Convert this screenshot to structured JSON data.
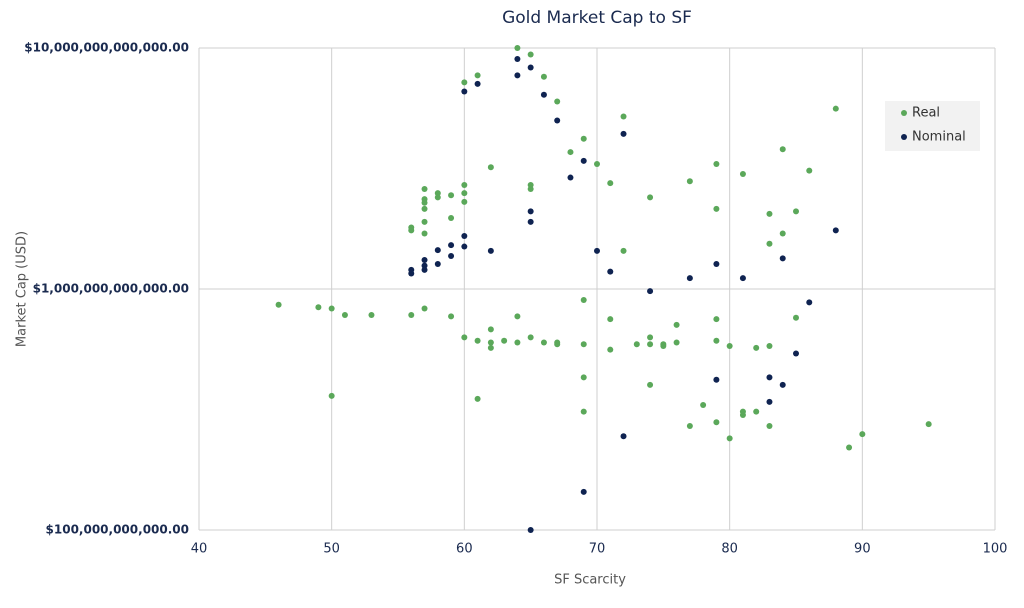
{
  "chart_data": {
    "type": "scatter",
    "title": "Gold Market Cap to SF",
    "x_label": "SF Scarcity",
    "y_label": "Market Cap (USD)",
    "log_y": true,
    "grid": true,
    "legend": "upper-right",
    "xlim": [
      40,
      100
    ],
    "xticks": [
      40,
      50,
      60,
      70,
      80,
      90,
      100
    ],
    "ylim": [
      100000000000.0,
      10000000000000.0
    ],
    "yticks": [
      {
        "value": 100000000000.0,
        "label": "$100,000,000,000.00"
      },
      {
        "value": 1000000000000.0,
        "label": "$1,000,000,000,000.00"
      },
      {
        "value": 10000000000000.0,
        "label": "$10,000,000,000,000.00"
      }
    ],
    "series": [
      {
        "name": "Real",
        "color": "#5ba85a",
        "x": [
          46,
          49,
          50,
          51,
          53,
          56,
          57,
          59,
          50,
          60,
          61,
          62,
          62,
          62,
          63,
          64,
          64,
          65,
          66,
          67,
          67,
          69,
          69,
          69,
          69,
          71,
          71,
          73,
          74,
          74,
          75,
          75,
          76,
          76,
          77,
          78,
          79,
          79,
          80,
          80,
          81,
          81,
          82,
          82,
          83,
          83,
          85,
          89,
          90,
          95,
          61,
          74,
          79,
          60,
          61,
          64,
          65,
          66,
          67,
          68,
          69,
          70,
          71,
          72,
          74,
          77,
          79,
          81,
          84,
          85,
          84,
          83,
          83,
          86,
          88,
          79,
          72,
          56,
          56,
          57,
          57,
          57,
          57,
          57,
          57,
          58,
          58,
          59,
          59,
          60,
          60,
          60,
          62,
          65,
          65
        ],
        "values": [
          860000000000.0,
          840000000000.0,
          830000000000.0,
          780000000000.0,
          780000000000.0,
          780000000000.0,
          830000000000.0,
          770000000000.0,
          360000000000.0,
          630000000000.0,
          610000000000.0,
          680000000000.0,
          600000000000.0,
          570000000000.0,
          610000000000.0,
          770000000000.0,
          600000000000.0,
          630000000000.0,
          600000000000.0,
          590000000000.0,
          600000000000.0,
          900000000000.0,
          590000000000.0,
          430000000000.0,
          310000000000.0,
          750000000000.0,
          560000000000.0,
          590000000000.0,
          630000000000.0,
          590000000000.0,
          590000000000.0,
          580000000000.0,
          710000000000.0,
          600000000000.0,
          270000000000.0,
          330000000000.0,
          750000000000.0,
          610000000000.0,
          580000000000.0,
          240000000000.0,
          310000000000.0,
          300000000000.0,
          310000000000.0,
          570000000000.0,
          580000000000.0,
          270000000000.0,
          760000000000.0,
          220000000000.0,
          250000000000.0,
          275000000000.0,
          350000000000.0,
          400000000000.0,
          280000000000.0,
          7200000000000.0,
          7700000000000.0,
          10000000000000.0,
          9400000000000.0,
          7600000000000.0,
          6000000000000.0,
          3700000000000.0,
          4200000000000.0,
          3300000000000.0,
          2750000000000.0,
          5200000000000.0,
          2400000000000.0,
          2800000000000.0,
          3300000000000.0,
          3000000000000.0,
          3800000000000.0,
          2100000000000.0,
          1700000000000.0,
          2050000000000.0,
          1540000000000.0,
          3100000000000.0,
          5600000000000.0,
          2150000000000.0,
          1440000000000.0,
          1800000000000.0,
          1750000000000.0,
          2600000000000.0,
          2360000000000.0,
          2280000000000.0,
          2150000000000.0,
          1900000000000.0,
          1700000000000.0,
          2500000000000.0,
          2400000000000.0,
          2450000000000.0,
          1970000000000.0,
          2700000000000.0,
          2500000000000.0,
          2300000000000.0,
          3200000000000.0,
          2700000000000.0,
          2600000000000.0
        ]
      },
      {
        "name": "Nominal",
        "color": "#0f2351",
        "x": [
          56,
          56,
          57,
          57,
          57,
          58,
          58,
          59,
          59,
          60,
          60,
          60,
          61,
          62,
          64,
          64,
          65,
          65,
          65,
          66,
          67,
          68,
          69,
          70,
          71,
          72,
          72,
          74,
          77,
          79,
          79,
          81,
          83,
          83,
          84,
          84,
          85,
          86,
          88,
          65,
          69
        ],
        "values": [
          1200000000000.0,
          1160000000000.0,
          1320000000000.0,
          1250000000000.0,
          1200000000000.0,
          1450000000000.0,
          1270000000000.0,
          1520000000000.0,
          1370000000000.0,
          1660000000000.0,
          1500000000000.0,
          6600000000000.0,
          7100000000000.0,
          1440000000000.0,
          9000000000000.0,
          7700000000000.0,
          8300000000000.0,
          2100000000000.0,
          1900000000000.0,
          6400000000000.0,
          5000000000000.0,
          2900000000000.0,
          3400000000000.0,
          1440000000000.0,
          1180000000000.0,
          4400000000000.0,
          245000000000.0,
          980000000000.0,
          1110000000000.0,
          1270000000000.0,
          420000000000.0,
          1110000000000.0,
          430000000000.0,
          340000000000.0,
          1340000000000.0,
          400000000000.0,
          540000000000.0,
          880000000000.0,
          1750000000000.0,
          100000000000.0,
          144000000000.0
        ]
      }
    ]
  }
}
